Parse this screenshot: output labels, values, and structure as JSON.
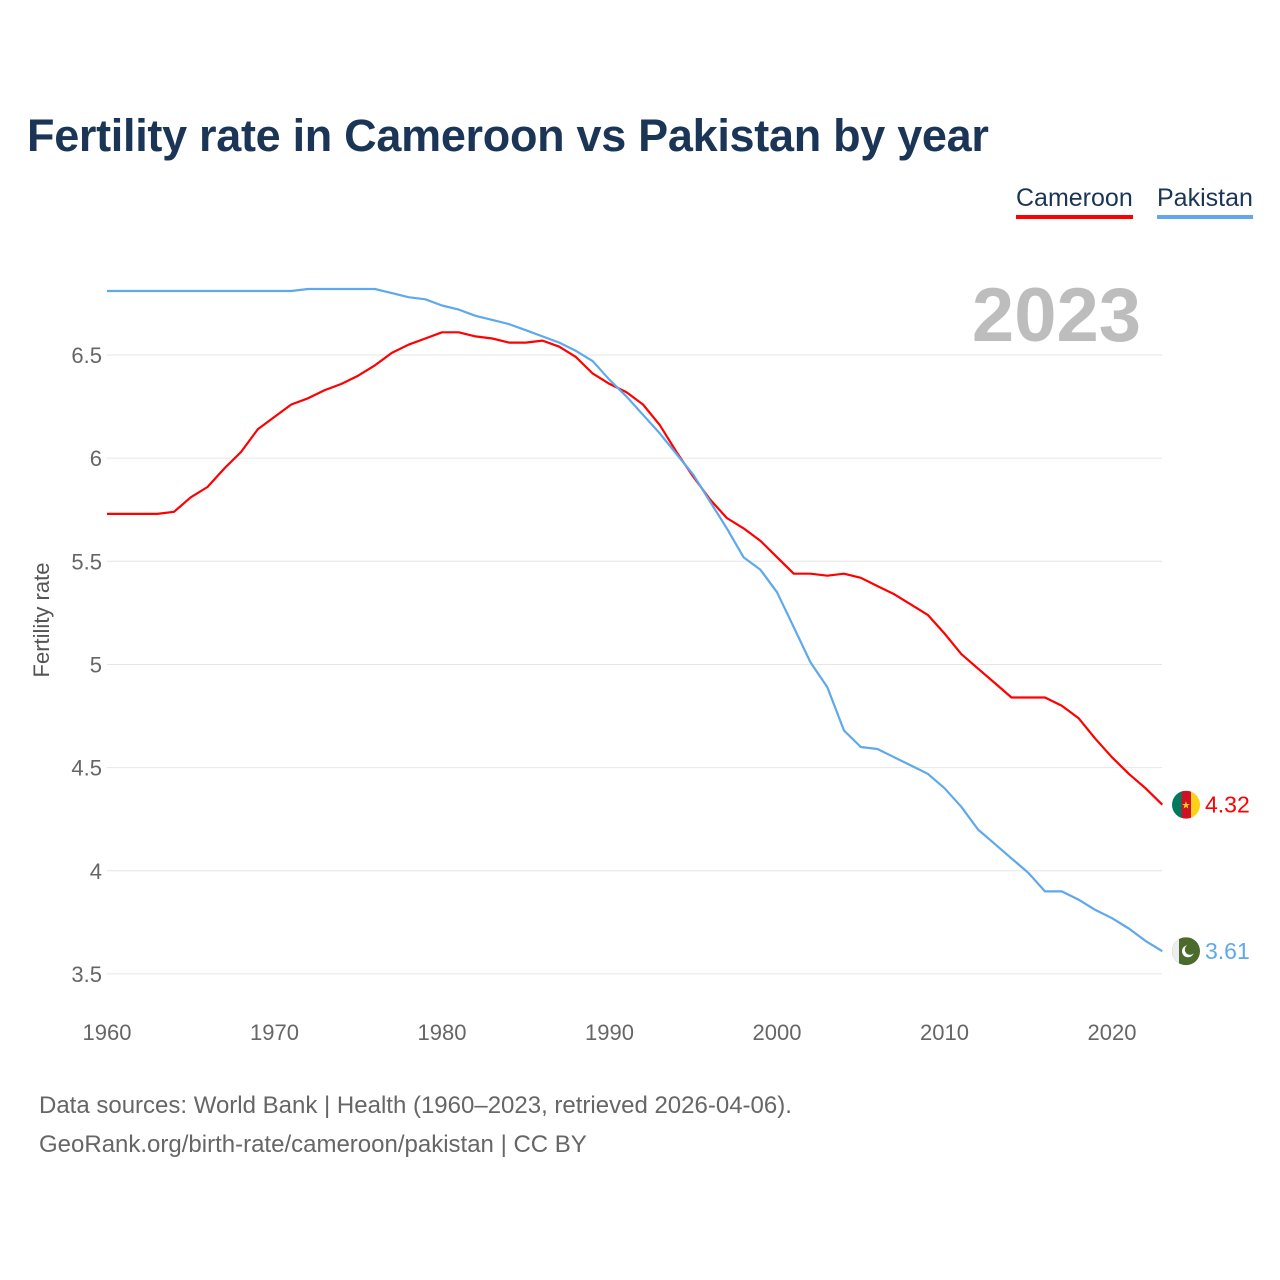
{
  "chart_data": {
    "type": "line",
    "title": "Fertility rate in Cameroon vs Pakistan by year",
    "xlabel": "",
    "ylabel": "Fertility rate",
    "xlim": [
      1960,
      2023
    ],
    "ylim": [
      3.5,
      6.85
    ],
    "x_ticks": [
      "1960",
      "1970",
      "1980",
      "1990",
      "2000",
      "2010",
      "2020"
    ],
    "y_ticks": [
      "3.5",
      "4",
      "4.5",
      "5",
      "5.5",
      "6",
      "6.5"
    ],
    "grid": true,
    "legend_position": "top-right",
    "year_label": "2023",
    "x_start": 1960,
    "series": [
      {
        "name": "Cameroon",
        "color": "#ff0000",
        "end_label": "4.32",
        "values": [
          5.73,
          5.73,
          5.73,
          5.73,
          5.74,
          5.81,
          5.86,
          5.95,
          6.03,
          6.14,
          6.2,
          6.26,
          6.29,
          6.33,
          6.36,
          6.4,
          6.45,
          6.51,
          6.55,
          6.58,
          6.61,
          6.61,
          6.59,
          6.58,
          6.56,
          6.56,
          6.57,
          6.54,
          6.49,
          6.41,
          6.36,
          6.32,
          6.26,
          6.16,
          6.03,
          5.91,
          5.8,
          5.71,
          5.66,
          5.6,
          5.52,
          5.44,
          5.44,
          5.43,
          5.44,
          5.42,
          5.38,
          5.34,
          5.29,
          5.24,
          5.15,
          5.05,
          4.98,
          4.91,
          4.84,
          4.84,
          4.84,
          4.8,
          4.74,
          4.64,
          4.55,
          4.47,
          4.4,
          4.32
        ]
      },
      {
        "name": "Pakistan",
        "color": "#5ea8ec",
        "end_label": "3.61",
        "values": [
          6.81,
          6.81,
          6.81,
          6.81,
          6.81,
          6.81,
          6.81,
          6.81,
          6.81,
          6.81,
          6.81,
          6.81,
          6.82,
          6.82,
          6.82,
          6.82,
          6.82,
          6.8,
          6.78,
          6.77,
          6.74,
          6.72,
          6.69,
          6.67,
          6.65,
          6.62,
          6.59,
          6.56,
          6.52,
          6.47,
          6.38,
          6.3,
          6.21,
          6.12,
          6.02,
          5.92,
          5.79,
          5.66,
          5.52,
          5.46,
          5.35,
          5.18,
          5.01,
          4.89,
          4.68,
          4.6,
          4.59,
          4.55,
          4.51,
          4.47,
          4.4,
          4.31,
          4.2,
          4.13,
          4.06,
          3.99,
          3.9,
          3.9,
          3.86,
          3.81,
          3.77,
          3.72,
          3.66,
          3.61
        ]
      }
    ]
  },
  "footer": {
    "line1": "Data sources: World Bank | Health (1960–2023, retrieved 2026-04-06).",
    "line2": "GeoRank.org/birth-rate/cameroon/pakistan | CC BY"
  }
}
